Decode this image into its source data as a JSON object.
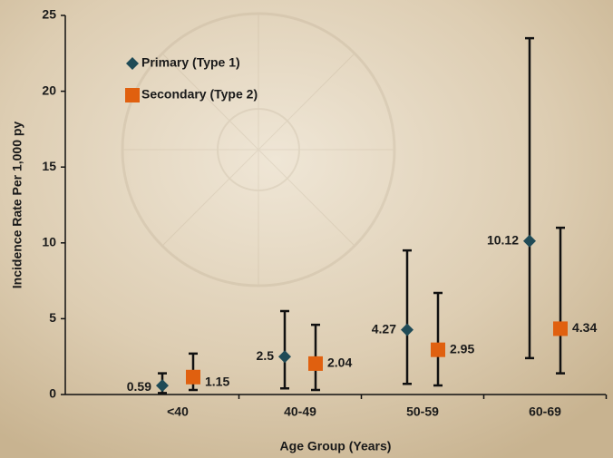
{
  "chart_data": {
    "type": "errorbar",
    "x_label": "Age Group (Years)",
    "y_label": "Incidence Rate Per 1,000 py",
    "categories": [
      "<40",
      "40-49",
      "50-59",
      "60-69"
    ],
    "series": [
      {
        "name": "Primary (Type 1)",
        "color": "#1f4b57",
        "marker": "diamond",
        "values": [
          0.59,
          2.5,
          4.27,
          10.12
        ],
        "lower": [
          0.1,
          0.4,
          0.7,
          2.4
        ],
        "upper": [
          1.4,
          5.5,
          9.5,
          23.5
        ]
      },
      {
        "name": "Secondary (Type 2)",
        "color": "#e0600f",
        "marker": "square",
        "values": [
          1.15,
          2.04,
          2.95,
          4.34
        ],
        "lower": [
          0.3,
          0.3,
          0.6,
          1.4
        ],
        "upper": [
          2.7,
          4.6,
          6.7,
          11.0
        ]
      }
    ],
    "ylim": [
      0,
      25
    ],
    "yticks": [
      0,
      5,
      10,
      15,
      20,
      25
    ],
    "grid": false,
    "legend": "upper-left"
  }
}
